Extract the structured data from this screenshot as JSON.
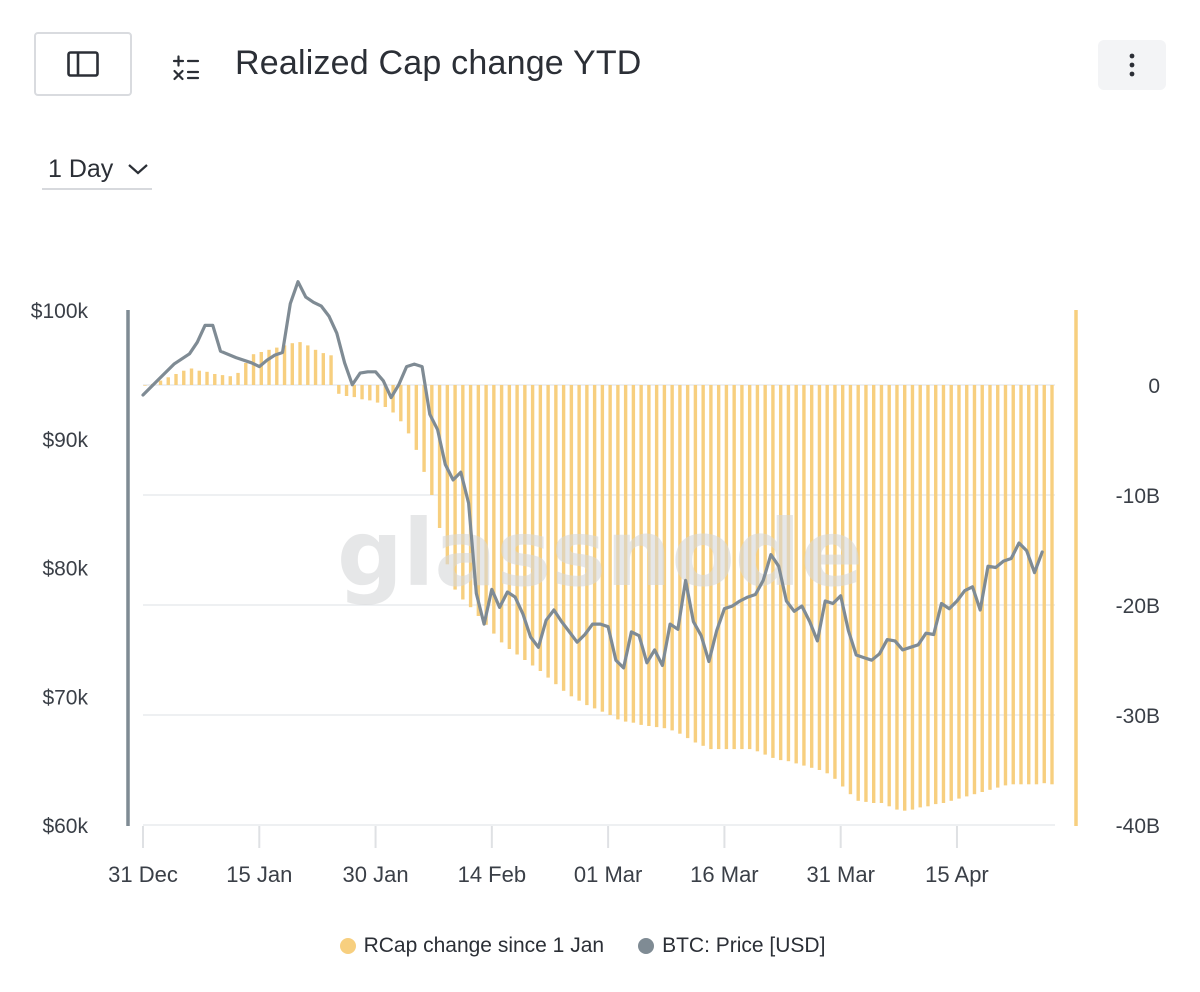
{
  "header": {
    "title": "Realized Cap change YTD",
    "sidebar_icon": "sidebar-panel-icon",
    "calc_icon": "calculator-icon",
    "menu_icon": "more-vertical-icon"
  },
  "controls": {
    "resolution": "1 Day",
    "resolution_icon": "chevron-down-icon"
  },
  "watermark": "glassnode",
  "colors": {
    "rcap": "#f7cf7f",
    "price": "#7f8b94",
    "grid": "#e9ebee",
    "axis_text": "#3a3f47"
  },
  "legend": [
    {
      "label": "RCap change since 1 Jan",
      "color": "#f7cf7f"
    },
    {
      "label": "BTC: Price [USD]",
      "color": "#7f8b94"
    }
  ],
  "chart_data": {
    "type": "bar+line",
    "x_ticks": [
      "31 Dec",
      "15 Jan",
      "30 Jan",
      "14 Feb",
      "01 Mar",
      "16 Mar",
      "31 Mar",
      "15 Apr"
    ],
    "left_axis": {
      "ticks": [
        "$100k",
        "$90k",
        "$80k",
        "$70k",
        "$60k"
      ],
      "tick_values": [
        100000,
        90000,
        80000,
        70000,
        60000
      ]
    },
    "right_axis": {
      "ticks": [
        "0",
        "-10B",
        "-20B",
        "-30B",
        "-40B"
      ],
      "tick_values": [
        0,
        -10,
        -20,
        -30,
        -40
      ]
    },
    "start_date": "2024-12-31",
    "series": [
      {
        "name": "RCap change since 1 Jan",
        "axis": "right",
        "unit": "B",
        "values": [
          0,
          0.1,
          0.4,
          0.7,
          1.0,
          1.3,
          1.5,
          1.3,
          1.2,
          1.0,
          0.9,
          0.8,
          1.1,
          2.0,
          2.8,
          3.0,
          3.2,
          3.4,
          3.6,
          3.8,
          3.9,
          3.6,
          3.2,
          2.9,
          2.7,
          -0.8,
          -1.0,
          -1.1,
          -1.3,
          -1.4,
          -1.6,
          -2.0,
          -2.5,
          -3.3,
          -4.4,
          -5.9,
          -7.9,
          -10.0,
          -13.0,
          -16.3,
          -18.6,
          -19.5,
          -20.2,
          -21.0,
          -21.8,
          -22.6,
          -23.4,
          -24.0,
          -24.5,
          -25.0,
          -25.5,
          -26.0,
          -26.6,
          -27.2,
          -27.8,
          -28.3,
          -28.7,
          -29.1,
          -29.4,
          -29.7,
          -30.0,
          -30.4,
          -30.6,
          -30.7,
          -30.9,
          -31.0,
          -31.1,
          -31.2,
          -31.4,
          -31.7,
          -32.1,
          -32.5,
          -32.8,
          -33.1,
          -33.1,
          -33.1,
          -33.1,
          -33.1,
          -33.1,
          -33.3,
          -33.6,
          -33.9,
          -34.1,
          -34.2,
          -34.4,
          -34.6,
          -34.8,
          -35.0,
          -35.3,
          -35.8,
          -36.5,
          -37.2,
          -37.8,
          -37.9,
          -38.0,
          -38.0,
          -38.3,
          -38.6,
          -38.7,
          -38.6,
          -38.4,
          -38.3,
          -38.1,
          -38.0,
          -37.8,
          -37.6,
          -37.4,
          -37.2,
          -37.0,
          -36.8,
          -36.6,
          -36.4,
          -36.3,
          -36.3,
          -36.3,
          -36.3,
          -36.2,
          -36.3
        ]
      },
      {
        "name": "BTC: Price [USD]",
        "axis": "left",
        "unit": "USD",
        "points": [
          [
            0,
            93400
          ],
          [
            2,
            94600
          ],
          [
            4,
            95800
          ],
          [
            6,
            96600
          ],
          [
            7,
            97500
          ],
          [
            8,
            98800
          ],
          [
            9,
            98800
          ],
          [
            10,
            96800
          ],
          [
            12,
            96300
          ],
          [
            14,
            95900
          ],
          [
            15,
            95600
          ],
          [
            16,
            96100
          ],
          [
            17,
            96500
          ],
          [
            18,
            96700
          ],
          [
            19,
            100500
          ],
          [
            20,
            102200
          ],
          [
            21,
            101000
          ],
          [
            22,
            100600
          ],
          [
            23,
            100300
          ],
          [
            24,
            99500
          ],
          [
            25,
            98200
          ],
          [
            26,
            95900
          ],
          [
            27,
            94200
          ],
          [
            28,
            95100
          ],
          [
            29,
            95200
          ],
          [
            30,
            95200
          ],
          [
            31,
            94500
          ],
          [
            32,
            93200
          ],
          [
            33,
            94200
          ],
          [
            34,
            95600
          ],
          [
            35,
            95800
          ],
          [
            36,
            95600
          ],
          [
            37,
            91900
          ],
          [
            38,
            90700
          ],
          [
            39,
            88000
          ],
          [
            40,
            86800
          ],
          [
            41,
            87400
          ],
          [
            42,
            85000
          ],
          [
            43,
            78000
          ],
          [
            44,
            75600
          ],
          [
            45,
            78300
          ],
          [
            46,
            76900
          ],
          [
            47,
            78100
          ],
          [
            48,
            77700
          ],
          [
            49,
            76400
          ],
          [
            50,
            74600
          ],
          [
            51,
            73800
          ],
          [
            52,
            75900
          ],
          [
            53,
            76700
          ],
          [
            54,
            75800
          ],
          [
            55,
            75000
          ],
          [
            56,
            74200
          ],
          [
            57,
            74800
          ],
          [
            58,
            75600
          ],
          [
            59,
            75600
          ],
          [
            60,
            75400
          ],
          [
            61,
            72800
          ],
          [
            62,
            72200
          ],
          [
            63,
            75000
          ],
          [
            64,
            74700
          ],
          [
            65,
            72600
          ],
          [
            66,
            73600
          ],
          [
            67,
            72400
          ],
          [
            68,
            75600
          ],
          [
            69,
            75200
          ],
          [
            70,
            79000
          ],
          [
            71,
            75800
          ],
          [
            72,
            74700
          ],
          [
            73,
            72700
          ],
          [
            74,
            75100
          ],
          [
            75,
            76800
          ],
          [
            76,
            77000
          ],
          [
            77,
            77400
          ],
          [
            78,
            77700
          ],
          [
            79,
            77900
          ],
          [
            80,
            79000
          ],
          [
            81,
            81000
          ],
          [
            82,
            80100
          ],
          [
            83,
            77400
          ],
          [
            84,
            76600
          ],
          [
            85,
            77000
          ],
          [
            86,
            75800
          ],
          [
            87,
            74300
          ],
          [
            88,
            77400
          ],
          [
            89,
            77200
          ],
          [
            90,
            77800
          ],
          [
            91,
            75100
          ],
          [
            92,
            73200
          ],
          [
            93,
            73000
          ],
          [
            94,
            72800
          ],
          [
            95,
            73300
          ],
          [
            96,
            74400
          ],
          [
            97,
            74300
          ],
          [
            98,
            73600
          ],
          [
            99,
            73800
          ],
          [
            100,
            74000
          ],
          [
            101,
            74900
          ],
          [
            102,
            74800
          ],
          [
            103,
            77200
          ],
          [
            104,
            76800
          ],
          [
            105,
            77400
          ],
          [
            106,
            78200
          ],
          [
            107,
            78500
          ],
          [
            108,
            76700
          ],
          [
            109,
            80100
          ],
          [
            110,
            80000
          ],
          [
            111,
            80500
          ],
          [
            112,
            80700
          ],
          [
            113,
            81900
          ],
          [
            114,
            81300
          ],
          [
            115,
            79600
          ],
          [
            116,
            81200
          ]
        ]
      }
    ]
  }
}
